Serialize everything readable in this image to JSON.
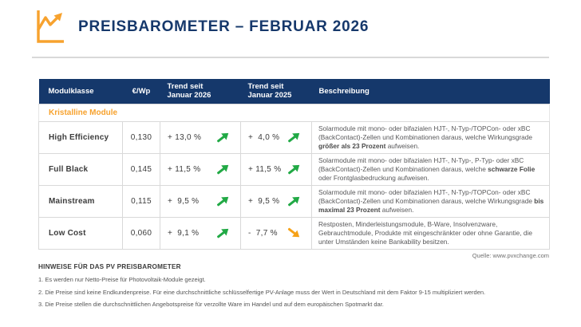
{
  "brand": {
    "logo_icon": "line-chart-icon",
    "orange": "#f7a22e",
    "navy": "#15386b",
    "green": "#21a945",
    "amber": "#f6a117"
  },
  "header": {
    "title": "PREISBAROMETER – FEBRUAR 2026"
  },
  "table": {
    "columns": [
      "Modulklasse",
      "€/Wp",
      "Trend seit\nJanuar 2026",
      "Trend seit\nJanuar 2025",
      "Beschreibung"
    ],
    "category": "Kristalline Module",
    "rows": [
      {
        "name": "High Efficiency",
        "price": "0,130",
        "trend_2026": {
          "text": "+ 13,0 %",
          "dir": "up"
        },
        "trend_2025": {
          "text": "+  4,0 %",
          "dir": "up"
        },
        "desc": [
          {
            "t": "Solarmodule mit mono- oder bifazialen HJT-, N-Typ-/TOPCon- oder xBC (BackContact)-Zellen und Kombinationen daraus, welche Wirkungsgrade "
          },
          {
            "t": "größer als 23 Prozent",
            "b": true
          },
          {
            "t": " aufweisen."
          }
        ]
      },
      {
        "name": "Full Black",
        "price": "0,145",
        "trend_2026": {
          "text": "+ 11,5 %",
          "dir": "up"
        },
        "trend_2025": {
          "text": "+ 11,5 %",
          "dir": "up"
        },
        "desc": [
          {
            "t": "Solarmodule mit mono- oder bifazialen HJT-, N-Typ-, P-Typ- oder xBC (BackContact)-Zellen und Kombinationen daraus, welche "
          },
          {
            "t": "schwarze Folie",
            "b": true
          },
          {
            "t": " oder Frontglasbedruckung aufweisen."
          }
        ]
      },
      {
        "name": "Mainstream",
        "price": "0,115",
        "trend_2026": {
          "text": "+  9,5 %",
          "dir": "up"
        },
        "trend_2025": {
          "text": "+  9,5 %",
          "dir": "up"
        },
        "desc": [
          {
            "t": "Solarmodule mit mono- oder bifazialen HJT-, N-Typ-/TOPCon- oder xBC (BackContact)-Zellen und Kombinationen daraus, welche Wirkungsgrade "
          },
          {
            "t": "bis maximal 23 Prozent",
            "b": true
          },
          {
            "t": " aufweisen."
          }
        ]
      },
      {
        "name": "Low Cost",
        "price": "0,060",
        "trend_2026": {
          "text": "+  9,1 %",
          "dir": "up"
        },
        "trend_2025": {
          "text": "-  7,7 %",
          "dir": "down"
        },
        "desc": [
          {
            "t": "Restposten, Minderleistungsmodule, B-Ware, Insolvenzware, Gebrauchtmodule, Produkte mit eingeschränkter oder ohne Garantie, die unter Umständen keine Bankability besitzen."
          }
        ]
      }
    ]
  },
  "footer": {
    "source": "Quelle: www.pvxchange.com",
    "notes_heading": "HINWEISE FÜR DAS PV PREISBAROMETER",
    "notes": [
      "1. Es werden nur Netto-Preise für Photovoltaik-Module gezeigt.",
      "2. Die Preise sind keine Endkundenpreise. Für eine durchschnittliche schlüsselfertige PV-Anlage muss der Wert in Deutschland mit dem Faktor 9-15 multipliziert werden.",
      "3. Die Preise stellen die durchschnittlichen Angebotspreise für verzollte Ware im Handel und auf dem europäischen Spotmarkt dar."
    ]
  }
}
